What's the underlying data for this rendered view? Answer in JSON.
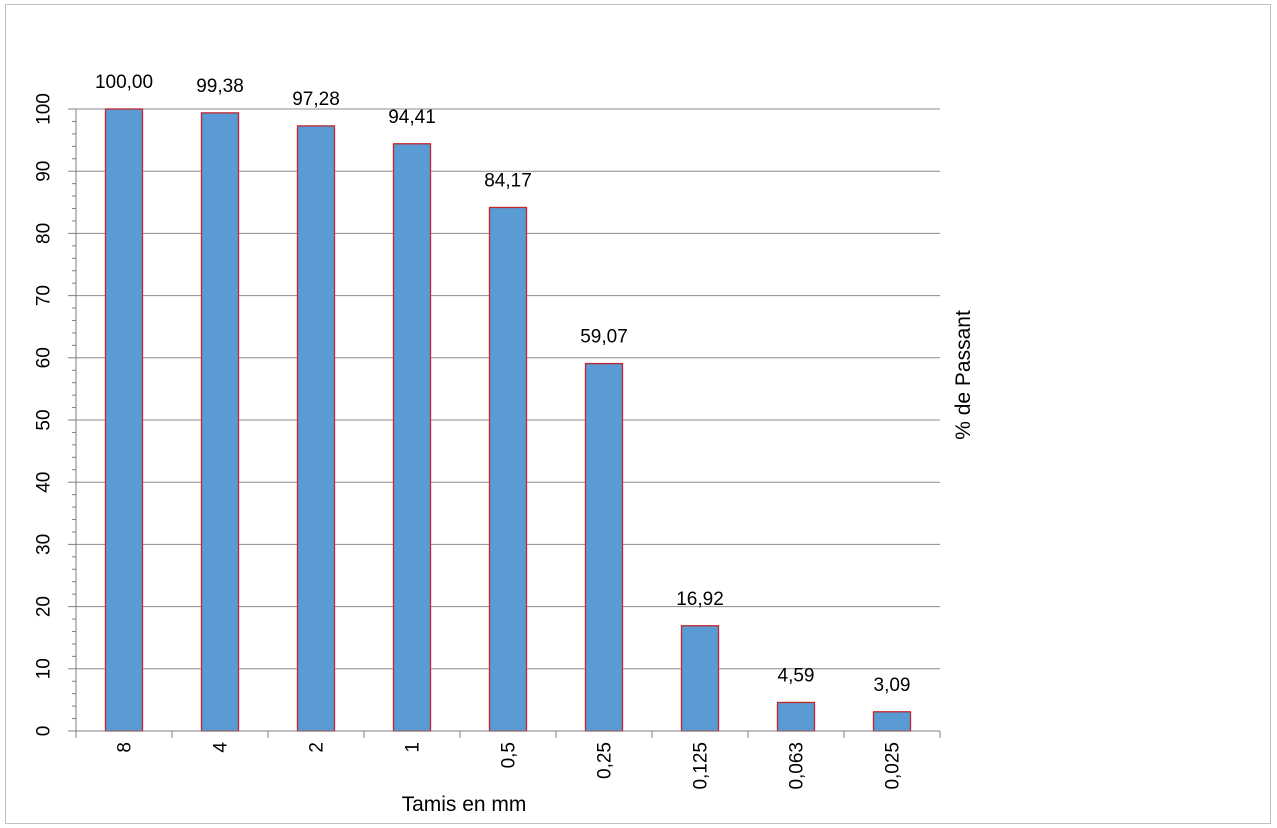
{
  "chart_data": {
    "type": "bar",
    "title": "",
    "xlabel": "Tamis en mm",
    "ylabel": "% de Passant",
    "categories": [
      "8",
      "4",
      "2",
      "1",
      "0,5",
      "0,25",
      "0,125",
      "0,063",
      "0,025"
    ],
    "values": [
      100.0,
      99.38,
      97.28,
      94.41,
      84.17,
      59.07,
      16.92,
      4.59,
      3.09
    ],
    "value_labels": [
      "100,00",
      "99,38",
      "97,28",
      "94,41",
      "84,17",
      "59,07",
      "16,92",
      "4,59",
      "3,09"
    ],
    "ylim": [
      0,
      100
    ],
    "y_ticks": [
      "0",
      "10",
      "20",
      "30",
      "40",
      "50",
      "60",
      "70",
      "80",
      "90",
      "100"
    ],
    "grid": true,
    "legend": "none",
    "colors": {
      "bar_fill": "#5B9BD5",
      "bar_stroke": "#C0272D",
      "grid": "#8c8c8c",
      "axis": "#7f7f7f"
    }
  }
}
